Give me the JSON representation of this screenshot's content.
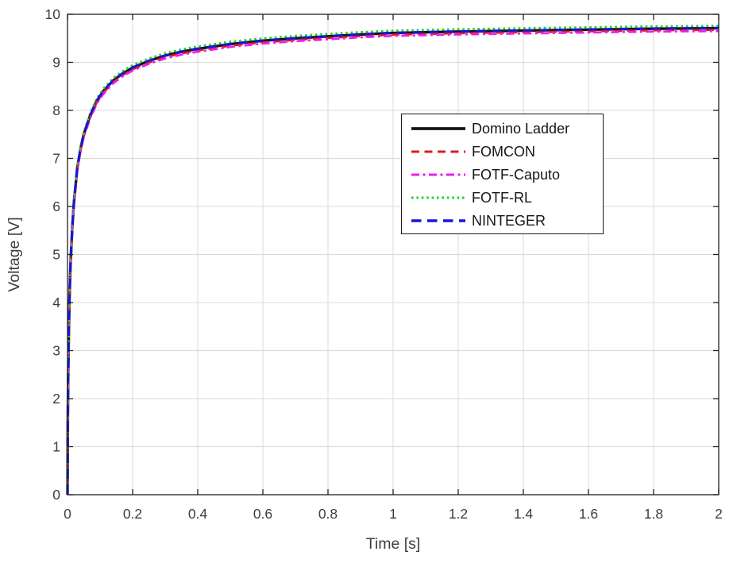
{
  "figure": {
    "background": "#ffffff"
  },
  "chart_data": {
    "type": "line",
    "title": "",
    "xlabel": "Time [s]",
    "ylabel": "Voltage [V]",
    "xlim": [
      0,
      2
    ],
    "ylim": [
      0,
      10
    ],
    "grid": true,
    "legend_position": "inside upper right",
    "x": [
      0,
      0.001,
      0.002,
      0.004,
      0.006,
      0.008,
      0.01,
      0.015,
      0.02,
      0.03,
      0.04,
      0.05,
      0.07,
      0.09,
      0.11,
      0.14,
      0.17,
      0.2,
      0.25,
      0.3,
      0.35,
      0.4,
      0.5,
      0.6,
      0.7,
      0.8,
      0.9,
      1.0,
      1.2,
      1.4,
      1.6,
      1.8,
      2.0
    ],
    "base_voltage": [
      0,
      1.6,
      2.4,
      3.4,
      4.05,
      4.55,
      4.9,
      5.6,
      6.1,
      6.8,
      7.2,
      7.5,
      7.9,
      8.2,
      8.4,
      8.62,
      8.77,
      8.89,
      9.03,
      9.14,
      9.22,
      9.28,
      9.38,
      9.45,
      9.5,
      9.54,
      9.58,
      9.61,
      9.64,
      9.66,
      9.68,
      9.7,
      9.71
    ],
    "series": [
      {
        "name": "Domino Ladder",
        "color": "#141414",
        "linestyle": "solid",
        "dash": "",
        "width": 3.4,
        "offset": 0
      },
      {
        "name": "FOMCON",
        "color": "#e11b1b",
        "linestyle": "dashed",
        "dash": "10 6.5",
        "width": 2.7,
        "offset": -0.035
      },
      {
        "name": "FOTF-Caputo",
        "color": "#ee1cee",
        "linestyle": "dash-dot",
        "dash": "10 4.5 3 4.5",
        "width": 2.7,
        "offset": -0.06
      },
      {
        "name": "FOTF-RL",
        "color": "#21d121",
        "linestyle": "dotted",
        "dash": "2.6 3.8",
        "width": 2.7,
        "offset": 0.05
      },
      {
        "name": "NINTEGER",
        "color": "#1717d3",
        "linestyle": "dashed",
        "dash": "12.5 7.5",
        "width": 3.0,
        "offset": 0.005
      }
    ],
    "xticks": [
      0,
      0.2,
      0.4,
      0.6,
      0.8,
      1,
      1.2,
      1.4,
      1.6,
      1.8,
      2
    ],
    "xtick_labels": [
      "0",
      "0.2",
      "0.4",
      "0.6",
      "0.8",
      "1",
      "1.2",
      "1.4",
      "1.6",
      "1.8",
      "2"
    ],
    "yticks": [
      0,
      1,
      2,
      3,
      4,
      5,
      6,
      7,
      8,
      9,
      10
    ],
    "ytick_labels": [
      "0",
      "1",
      "2",
      "3",
      "4",
      "5",
      "6",
      "7",
      "8",
      "9",
      "10"
    ],
    "colors": {
      "axis": "#202020",
      "grid": "#d9d9d9",
      "tick_label": "#3e3e3e",
      "axis_label": "#3e3e3e",
      "legend_text": "#161616",
      "legend_border": "#1a1a1a"
    }
  },
  "legend": {
    "entries": [
      "Domino Ladder",
      "FOMCON",
      "FOTF-Caputo",
      "FOTF-RL",
      "NINTEGER"
    ]
  }
}
